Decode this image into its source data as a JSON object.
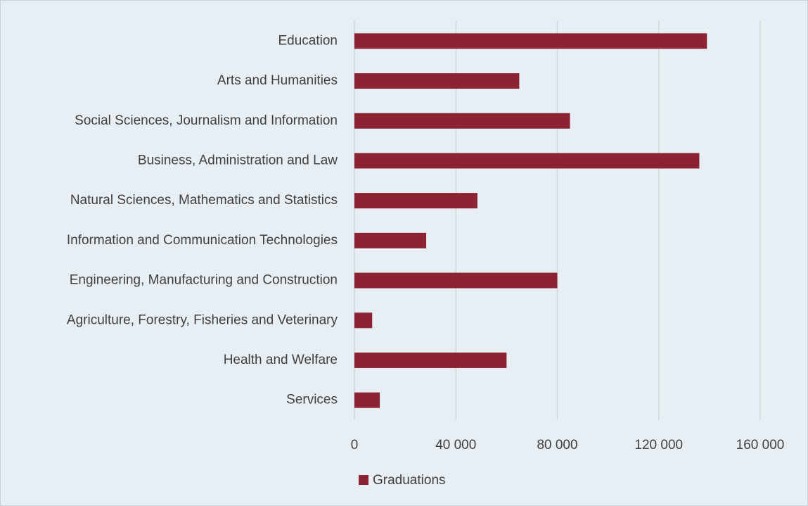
{
  "chart_data": {
    "type": "bar",
    "orientation": "horizontal",
    "categories": [
      "Education",
      "Arts and Humanities",
      "Social Sciences, Journalism and Information",
      "Business, Administration and Law",
      "Natural Sciences, Mathematics and Statistics",
      "Information and Communication Technologies",
      "Engineering, Manufacturing and Construction",
      "Agriculture, Forestry, Fisheries and Veterinary",
      "Health and Welfare",
      "Services"
    ],
    "series": [
      {
        "name": "Graduations",
        "color": "#8b2332",
        "values": [
          139000,
          65000,
          85000,
          136000,
          48500,
          28300,
          80000,
          7000,
          60000,
          10000
        ]
      }
    ],
    "xlim": [
      0,
      160000
    ],
    "xticks": [
      0,
      {
        "value": 40000,
        "label": "40 000"
      },
      {
        "value": 80000,
        "label": "80 000"
      },
      {
        "value": 120000,
        "label": "120 000"
      },
      {
        "value": 160000,
        "label": "160 000"
      }
    ],
    "grid": true,
    "legend": "bottom"
  }
}
